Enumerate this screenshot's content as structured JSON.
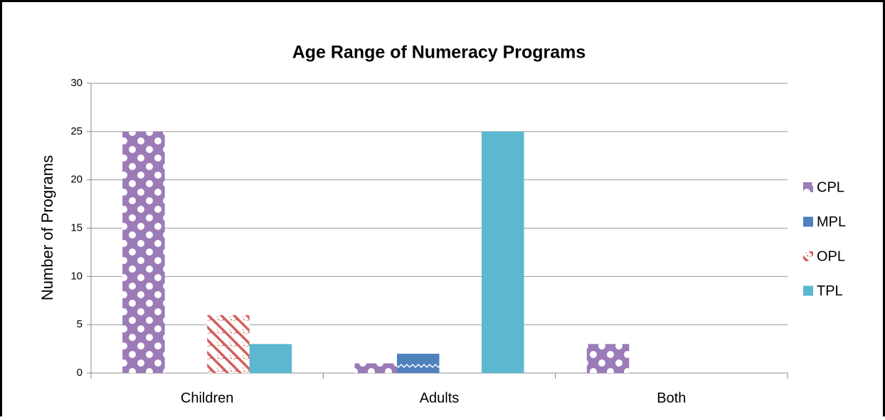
{
  "chart_data": {
    "type": "bar",
    "title": "Age Range of Numeracy Programs",
    "y_label": "Number of Programs",
    "categories": [
      "Children",
      "Adults",
      "Both"
    ],
    "series": [
      {
        "name": "CPL",
        "color": "#9b7bb8",
        "values": [
          25,
          1,
          3
        ]
      },
      {
        "name": "MPL",
        "color": "#4f81bd",
        "values": [
          0,
          2,
          0
        ]
      },
      {
        "name": "OPL",
        "color": "#d0605c",
        "values": [
          6,
          0,
          0
        ]
      },
      {
        "name": "TPL",
        "color": "#5bb8d0",
        "values": [
          3,
          25,
          0
        ]
      }
    ],
    "ylim": [
      0,
      30
    ],
    "yticks": [
      0,
      5,
      10,
      15,
      20,
      25,
      30
    ],
    "grid": true,
    "legend": "right"
  }
}
